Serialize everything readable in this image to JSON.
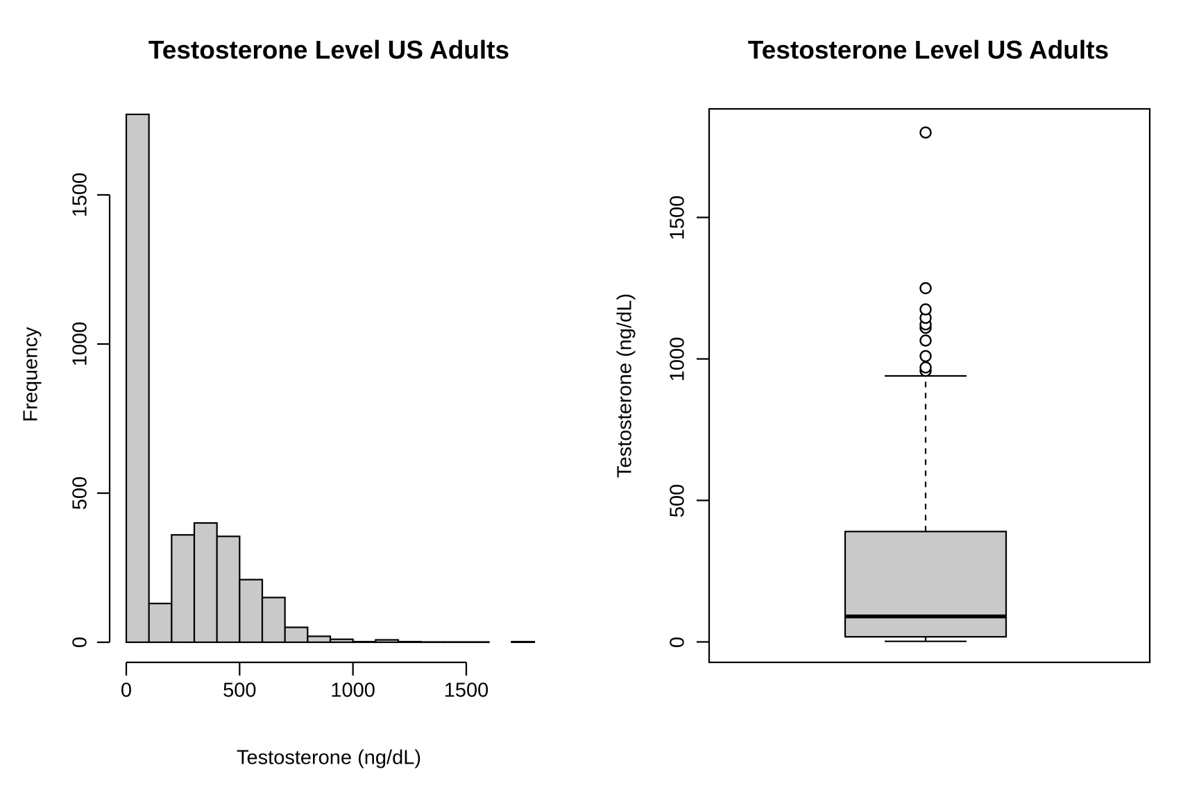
{
  "figure": {
    "background": "#ffffff",
    "line_color": "#000000",
    "fill_gray": "#c9c9c9"
  },
  "chart_data": [
    {
      "type": "bar",
      "subtype": "histogram",
      "title": "Testosterone Level US Adults",
      "xlabel": "Testosterone (ng/dL)",
      "ylabel": "Frequency",
      "bins": {
        "start": 0,
        "width": 100,
        "end": 1800
      },
      "categories": [
        "0-100",
        "100-200",
        "200-300",
        "300-400",
        "400-500",
        "500-600",
        "600-700",
        "700-800",
        "800-900",
        "900-1000",
        "1000-1100",
        "1100-1200",
        "1200-1300",
        "1300-1400",
        "1400-1500",
        "1500-1600",
        "1600-1700",
        "1700-1800"
      ],
      "values": [
        1770,
        130,
        360,
        400,
        355,
        210,
        150,
        50,
        20,
        10,
        2,
        8,
        2,
        1,
        1,
        1,
        0,
        2
      ],
      "x_ticks": [
        0,
        500,
        1000,
        1500
      ],
      "y_ticks": [
        0,
        500,
        1000,
        1500
      ],
      "xlim": [
        0,
        1800
      ],
      "ylim": [
        0,
        1770
      ],
      "grid": "off",
      "bar_fill": "#c9c9c9",
      "line_color": "#000000"
    },
    {
      "type": "boxplot",
      "title": "Testosterone Level US Adults",
      "ylabel": "Testosterone (ng/dL)",
      "y_ticks": [
        0,
        500,
        1000,
        1500
      ],
      "stats": {
        "whisker_low": 2,
        "q1": 18,
        "median": 90,
        "q3": 390,
        "whisker_high": 940
      },
      "outliers": [
        958,
        970,
        1010,
        1065,
        1110,
        1122,
        1145,
        1175,
        1250,
        1800
      ],
      "grid": "off",
      "box_fill": "#c9c9c9",
      "line_color": "#000000"
    }
  ]
}
